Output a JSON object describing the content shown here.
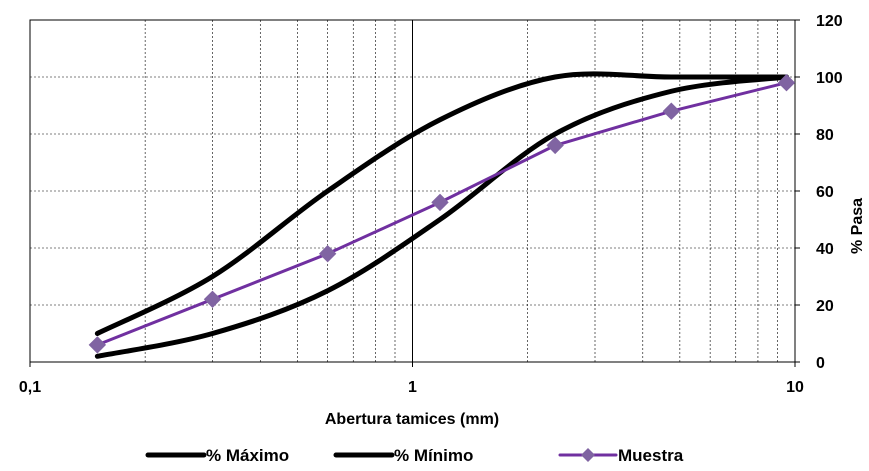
{
  "chart_data": {
    "type": "line",
    "xscale": "log",
    "xlim": [
      0.1,
      10
    ],
    "ylim": [
      0,
      120
    ],
    "grid": true,
    "legend_position": "bottom",
    "xlabel": "Abertura tamices (mm)",
    "ylabel": "% Pasa",
    "x_ticks": [
      {
        "value": 0.1,
        "label": "0,1"
      },
      {
        "value": 1,
        "label": "1"
      },
      {
        "value": 10,
        "label": "10"
      }
    ],
    "y_ticks": [
      {
        "value": 0,
        "label": "0"
      },
      {
        "value": 20,
        "label": "20"
      },
      {
        "value": 40,
        "label": "40"
      },
      {
        "value": 60,
        "label": "60"
      },
      {
        "value": 80,
        "label": "80"
      },
      {
        "value": 100,
        "label": "100"
      },
      {
        "value": 120,
        "label": "120"
      }
    ],
    "series": [
      {
        "name": "% Máximo",
        "color": "#000000",
        "marker": "none",
        "smooth": true,
        "points": [
          [
            0.15,
            10
          ],
          [
            0.3,
            30
          ],
          [
            0.6,
            60
          ],
          [
            1.18,
            85
          ],
          [
            2.36,
            100
          ],
          [
            4.75,
            100
          ],
          [
            9.5,
            100
          ]
        ]
      },
      {
        "name": "% Mínimo",
        "color": "#000000",
        "marker": "none",
        "smooth": true,
        "points": [
          [
            0.15,
            2
          ],
          [
            0.3,
            10
          ],
          [
            0.6,
            25
          ],
          [
            1.18,
            50
          ],
          [
            2.36,
            80
          ],
          [
            4.75,
            95
          ],
          [
            9.5,
            100
          ]
        ]
      },
      {
        "name": "Muestra",
        "color": "#7030A0",
        "marker": "diamond",
        "smooth": false,
        "points": [
          [
            0.15,
            6
          ],
          [
            0.3,
            22
          ],
          [
            0.6,
            38
          ],
          [
            1.18,
            56
          ],
          [
            2.36,
            76
          ],
          [
            4.75,
            88
          ],
          [
            9.5,
            98
          ]
        ]
      }
    ]
  }
}
